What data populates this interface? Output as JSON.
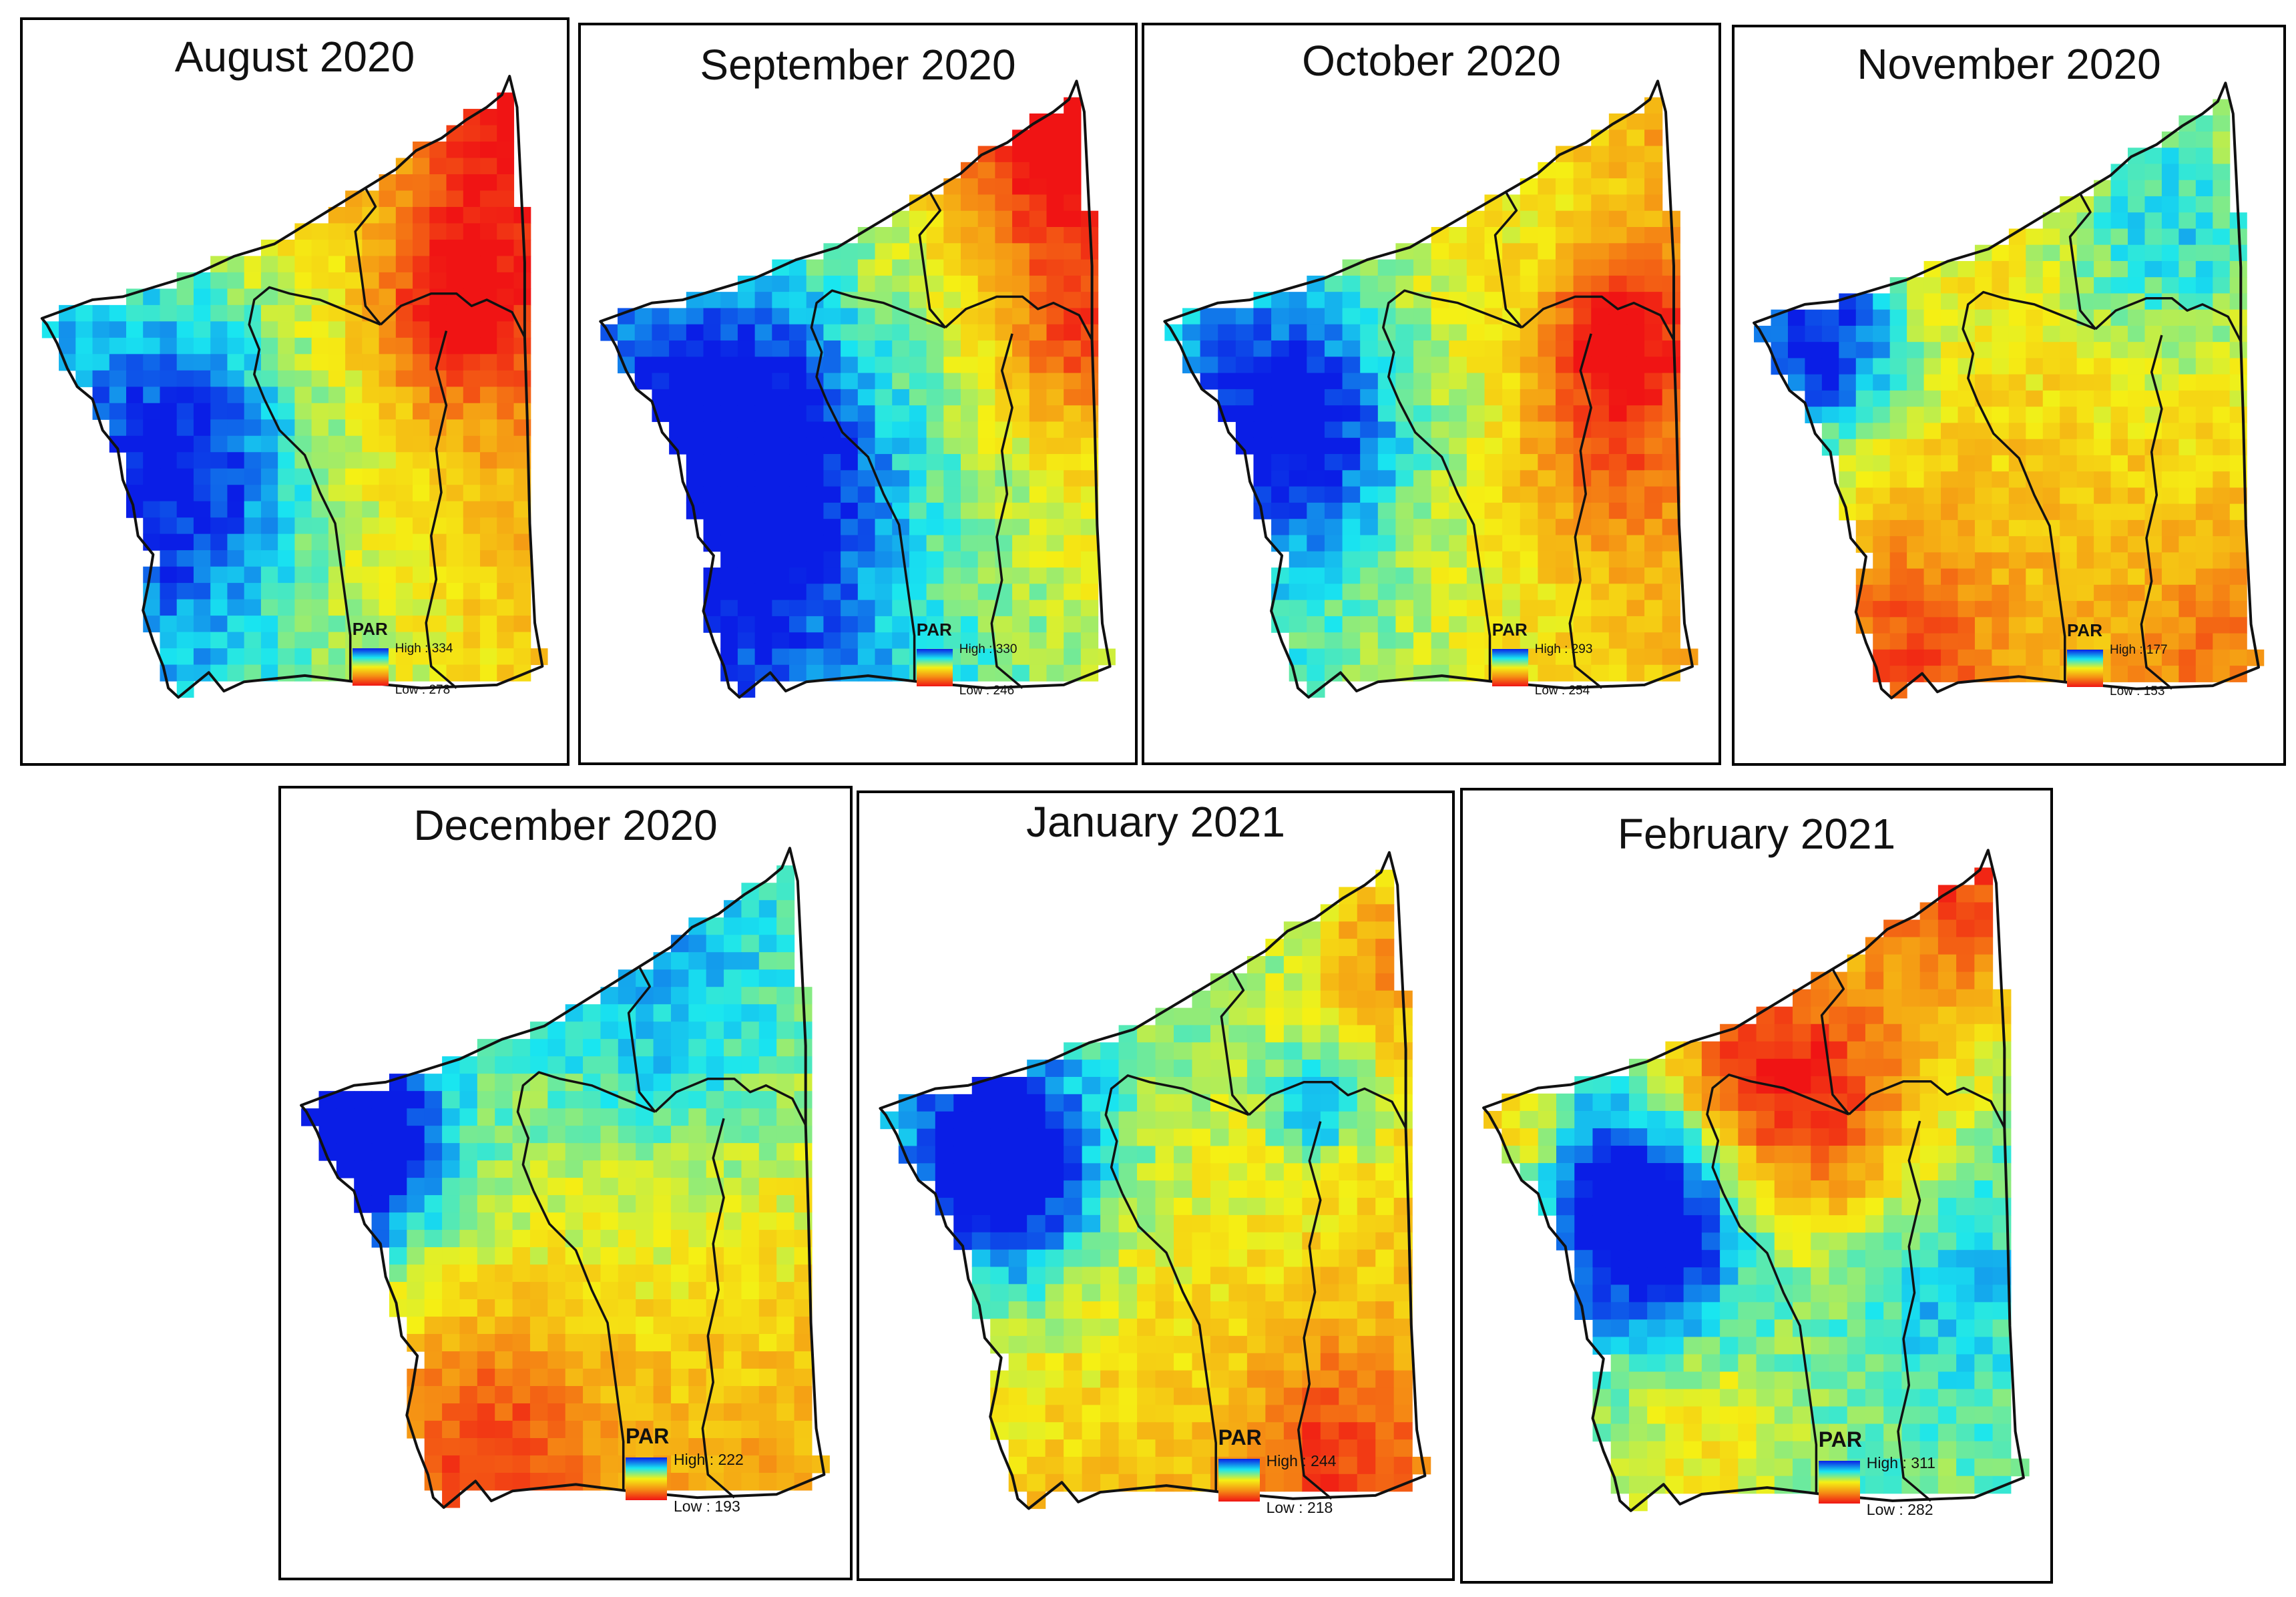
{
  "figure": {
    "panels": [
      {
        "title": "August 2020",
        "legend_title": "PAR",
        "high_label": "High : 334",
        "low_label": "Low : 278",
        "pattern": "aug"
      },
      {
        "title": "September 2020",
        "legend_title": "PAR",
        "high_label": "High : 330",
        "low_label": "Low : 246",
        "pattern": "sep"
      },
      {
        "title": "October 2020",
        "legend_title": "PAR",
        "high_label": "High : 293",
        "low_label": "Low : 254",
        "pattern": "oct"
      },
      {
        "title": "November 2020",
        "legend_title": "PAR",
        "high_label": "High : 177",
        "low_label": "Low : 153",
        "pattern": "nov"
      },
      {
        "title": "December 2020",
        "legend_title": "PAR",
        "high_label": "High : 222",
        "low_label": "Low : 193",
        "pattern": "dec"
      },
      {
        "title": "January 2021",
        "legend_title": "PAR",
        "high_label": "High : 244",
        "low_label": "Low : 218",
        "pattern": "jan"
      },
      {
        "title": "February 2021",
        "legend_title": "PAR",
        "high_label": "High : 311",
        "low_label": "Low : 282",
        "pattern": "feb"
      }
    ],
    "colors": {
      "ramp_high": "#0a1ee6",
      "ramp_mid_high": "#19e6f0",
      "ramp_mid": "#f5f014",
      "ramp_mid_low": "#f58c14",
      "ramp_low": "#f01414",
      "boundary": "#111111",
      "panel_border": "#000000"
    }
  }
}
